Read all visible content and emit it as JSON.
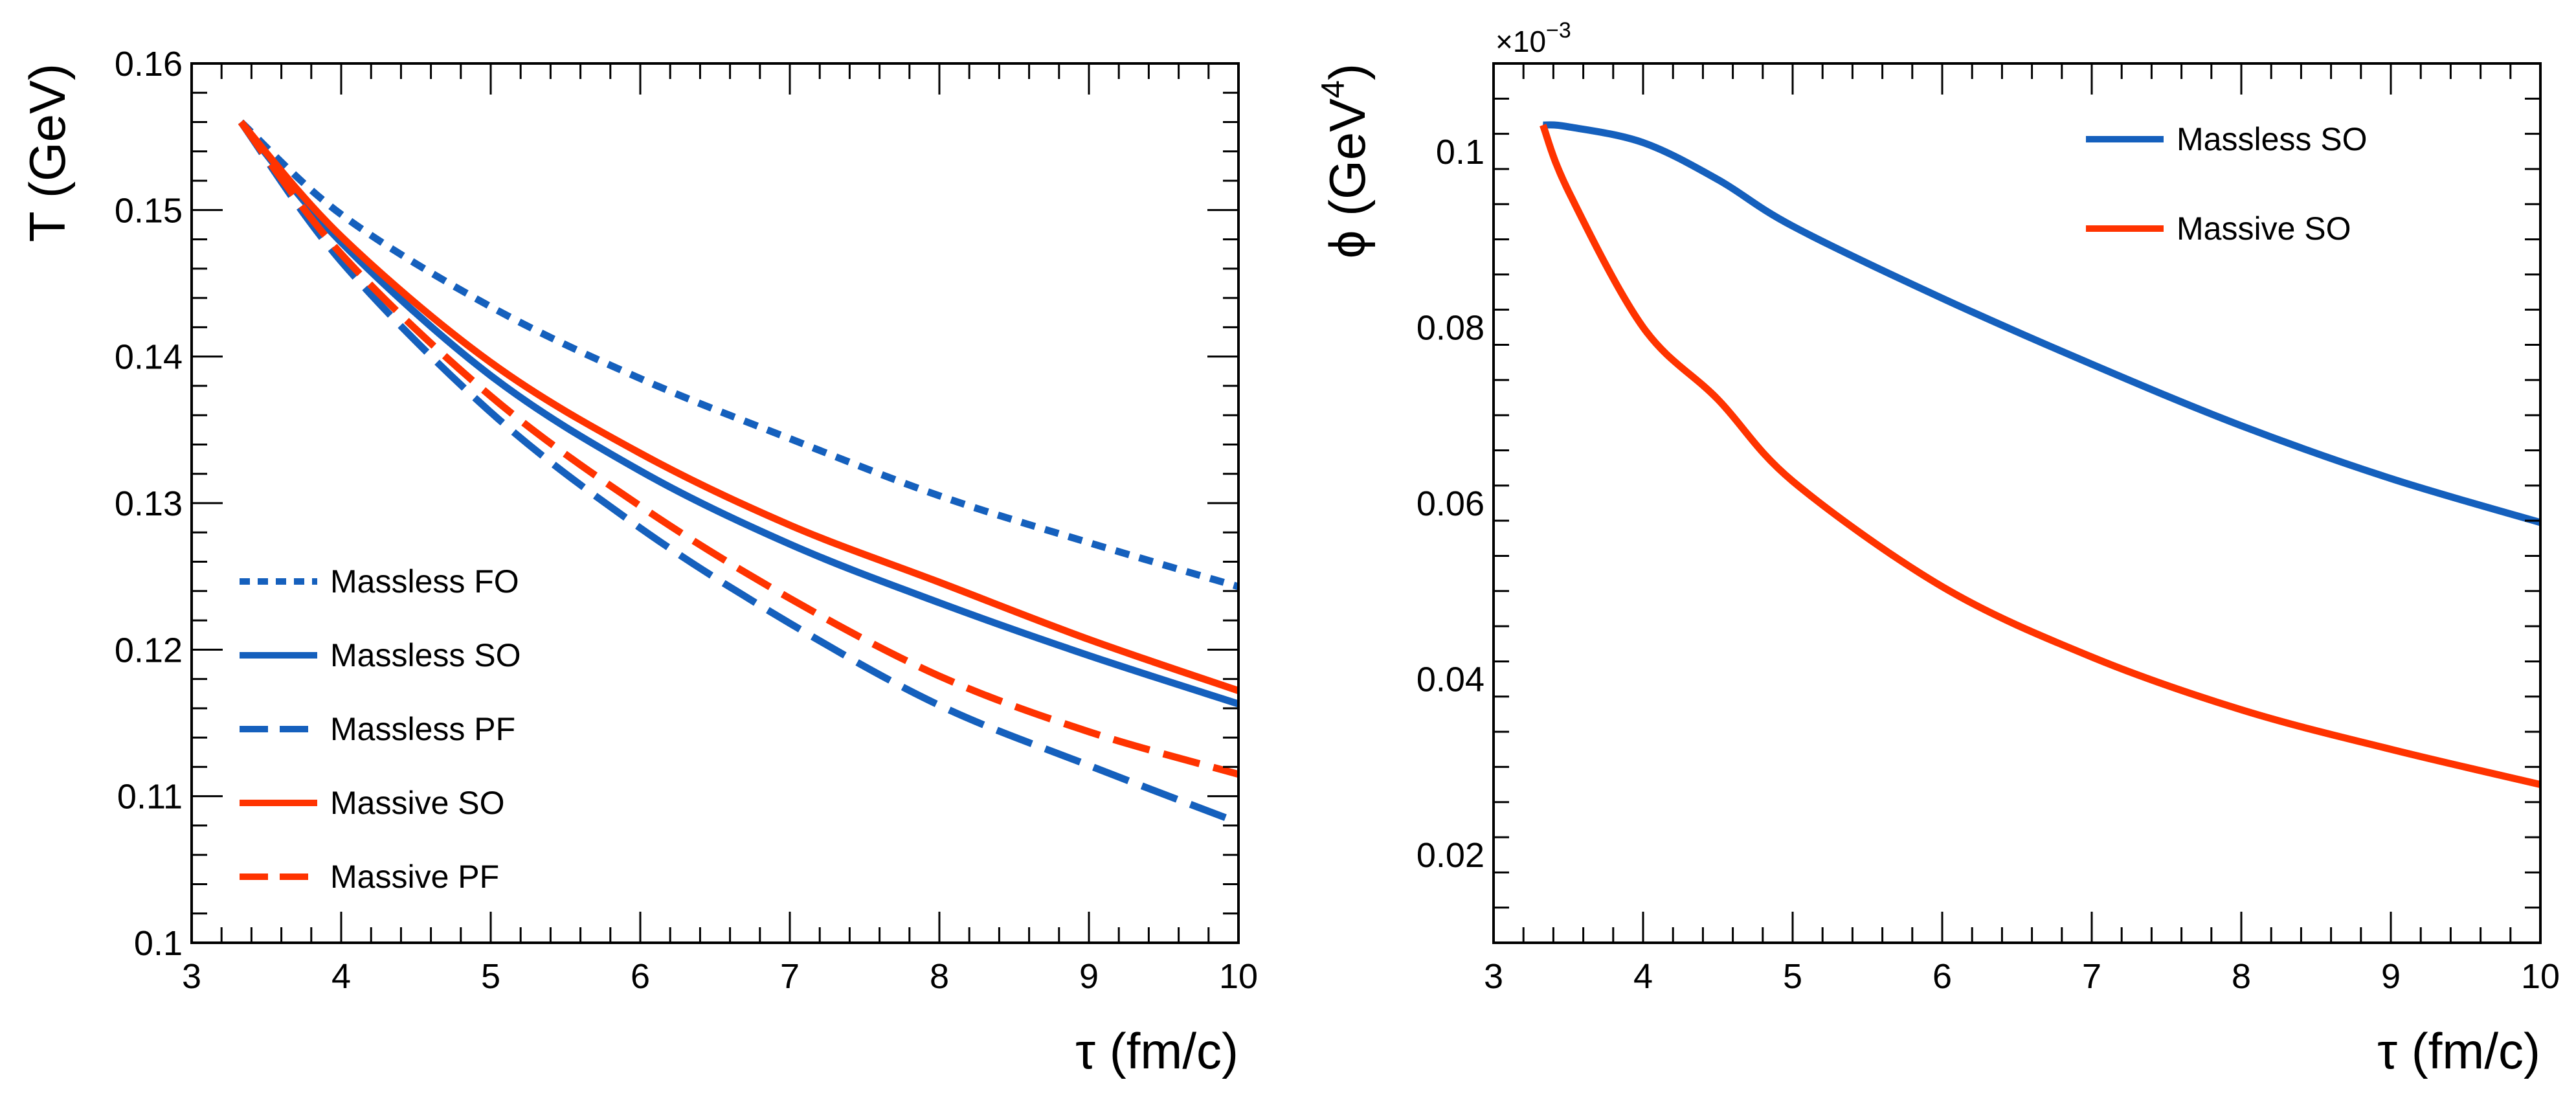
{
  "colors": {
    "blue": "#1560bd",
    "red": "#ff3300",
    "axis": "#000000"
  },
  "chart_data": [
    {
      "type": "line",
      "id": "left",
      "xlabel": "τ (fm/c)",
      "ylabel": "T (GeV)",
      "xlim": [
        3,
        10
      ],
      "ylim": [
        0.1,
        0.16
      ],
      "x_ticks": [
        3,
        4,
        5,
        6,
        7,
        8,
        9,
        10
      ],
      "x_tick_labels": [
        "3",
        "4",
        "5",
        "6",
        "7",
        "8",
        "9",
        "10"
      ],
      "y_ticks": [
        0.1,
        0.11,
        0.12,
        0.13,
        0.14,
        0.15,
        0.16
      ],
      "y_tick_labels": [
        "0.1",
        "0.11",
        "0.12",
        "0.13",
        "0.14",
        "0.15",
        "0.16"
      ],
      "legend_position": "lower-left",
      "series": [
        {
          "name": "Massless FO",
          "color": "blue",
          "dash": "dotted",
          "x": [
            3.33,
            4,
            5,
            6,
            7,
            8,
            9,
            10
          ],
          "y": [
            0.156,
            0.1497,
            0.1434,
            0.1385,
            0.1344,
            0.1305,
            0.1273,
            0.1243
          ]
        },
        {
          "name": "Massless SO",
          "color": "blue",
          "dash": "solid",
          "x": [
            3.33,
            4,
            5,
            6,
            7,
            8,
            9,
            10
          ],
          "y": [
            0.156,
            0.1478,
            0.1387,
            0.1322,
            0.1272,
            0.1232,
            0.1196,
            0.1163
          ]
        },
        {
          "name": "Massless PF",
          "color": "blue",
          "dash": "dashed",
          "x": [
            3.33,
            4,
            5,
            6,
            7,
            8,
            9,
            10
          ],
          "y": [
            0.156,
            0.1465,
            0.1362,
            0.1283,
            0.1218,
            0.1162,
            0.1121,
            0.1082
          ]
        },
        {
          "name": "Massive SO",
          "color": "red",
          "dash": "solid",
          "x": [
            3.33,
            4,
            5,
            6,
            7,
            8,
            9,
            10
          ],
          "y": [
            0.156,
            0.1482,
            0.1396,
            0.1334,
            0.1285,
            0.1246,
            0.1207,
            0.1172
          ]
        },
        {
          "name": "Massive PF",
          "color": "red",
          "dash": "dashed",
          "x": [
            3.33,
            4,
            5,
            6,
            7,
            8,
            9,
            10
          ],
          "y": [
            0.156,
            0.147,
            0.1373,
            0.1298,
            0.1235,
            0.1182,
            0.1144,
            0.1115
          ]
        }
      ]
    },
    {
      "type": "line",
      "id": "right",
      "xlabel": "τ (fm/c)",
      "ylabel": "ϕ (GeV",
      "ylabel_superscript": "4",
      "ylabel_close": ")",
      "y_multiplier_label": "×10",
      "y_multiplier_exponent": "−3",
      "xlim": [
        3,
        10
      ],
      "ylim": [
        0.01,
        0.11
      ],
      "x_ticks": [
        3,
        4,
        5,
        6,
        7,
        8,
        9,
        10
      ],
      "x_tick_labels": [
        "3",
        "4",
        "5",
        "6",
        "7",
        "8",
        "9",
        "10"
      ],
      "y_ticks": [
        0.02,
        0.04,
        0.06,
        0.08,
        0.1
      ],
      "y_tick_labels": [
        "0.02",
        "0.04",
        "0.06",
        "0.08",
        "0.1"
      ],
      "legend_position": "top-right",
      "series": [
        {
          "name": "Massless SO",
          "color": "blue",
          "dash": "solid",
          "x": [
            3.33,
            3.5,
            4,
            4.5,
            5,
            6,
            7,
            8,
            9,
            10
          ],
          "y": [
            0.103,
            0.1028,
            0.101,
            0.0968,
            0.0915,
            0.0833,
            0.0758,
            0.0688,
            0.0628,
            0.0578
          ]
        },
        {
          "name": "Massive SO",
          "color": "red",
          "dash": "solid",
          "x": [
            3.33,
            3.5,
            4,
            4.5,
            5,
            6,
            7,
            8,
            9,
            10
          ],
          "y": [
            0.103,
            0.0955,
            0.08,
            0.0718,
            0.0625,
            0.0505,
            0.0425,
            0.0365,
            0.032,
            0.028
          ]
        }
      ]
    }
  ]
}
